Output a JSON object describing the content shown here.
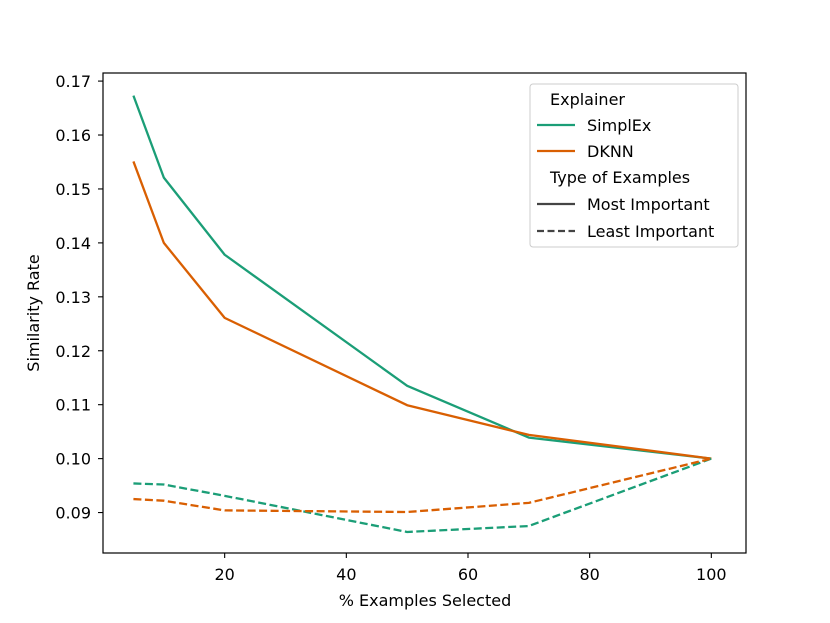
{
  "chart_data": {
    "type": "line",
    "title": "",
    "xlabel": "% Examples Selected",
    "ylabel": "Similarity Rate",
    "xlim": [
      0,
      105.7
    ],
    "ylim": [
      0.0825,
      0.1715
    ],
    "xticks": [
      20,
      40,
      60,
      80,
      100
    ],
    "yticks": [
      0.09,
      0.1,
      0.11,
      0.12,
      0.13,
      0.14,
      0.15,
      0.16,
      0.17
    ],
    "ytick_labels": [
      "0.09",
      "0.10",
      "0.11",
      "0.12",
      "0.13",
      "0.14",
      "0.15",
      "0.16",
      "0.17"
    ],
    "grid": false,
    "legend": {
      "position": "top-right",
      "explainer_title": "Explainer",
      "type_title": "Type of Examples",
      "most_label": "Most Important",
      "least_label": "Least Important"
    },
    "series": [
      {
        "name": "SimplEx",
        "type_of_examples": "Most Important",
        "color": "#1b9e77",
        "dashed": false,
        "x": [
          5,
          10,
          20,
          50,
          70,
          100
        ],
        "y": [
          0.1673,
          0.1521,
          0.1378,
          0.1135,
          0.1039,
          0.1
        ]
      },
      {
        "name": "DKNN",
        "type_of_examples": "Most Important",
        "color": "#d95f02",
        "dashed": false,
        "x": [
          5,
          10,
          20,
          50,
          70,
          100
        ],
        "y": [
          0.1551,
          0.14,
          0.1261,
          0.1099,
          0.1044,
          0.1
        ]
      },
      {
        "name": "SimplEx",
        "type_of_examples": "Least Important",
        "color": "#1b9e77",
        "dashed": true,
        "x": [
          5,
          10,
          20,
          50,
          70,
          100
        ],
        "y": [
          0.0954,
          0.0952,
          0.0931,
          0.0864,
          0.0875,
          0.1
        ]
      },
      {
        "name": "DKNN",
        "type_of_examples": "Least Important",
        "color": "#d95f02",
        "dashed": true,
        "x": [
          5,
          10,
          20,
          50,
          70,
          100
        ],
        "y": [
          0.0925,
          0.0922,
          0.0904,
          0.0901,
          0.0918,
          0.1
        ]
      }
    ]
  }
}
